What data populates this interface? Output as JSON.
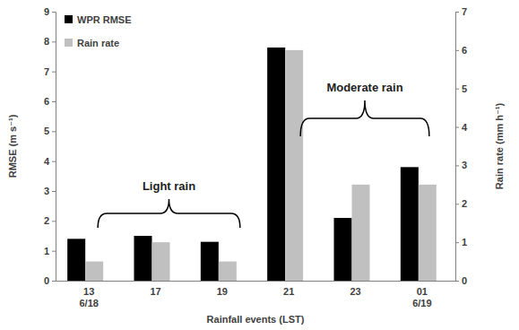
{
  "chart_data": {
    "type": "bar",
    "x_label": "Rainfall events (LST)",
    "y_label": "RMSE (m s⁻¹)",
    "y2_label": "Rain rate (mm h⁻¹)",
    "categories": [
      "13\n6/18",
      "17",
      "19",
      "21",
      "23",
      "01\n6/19"
    ],
    "series": [
      {
        "name": "WPR RMSE",
        "color": "#000000",
        "values": [
          1.4,
          1.5,
          1.3,
          7.8,
          2.1,
          3.8
        ]
      },
      {
        "name": "Rain rate",
        "color": "#c0c0c0",
        "axis": "y2",
        "values": [
          0.5,
          1.0,
          0.5,
          6.0,
          2.5,
          2.5
        ]
      }
    ],
    "ylim": [
      0,
      9
    ],
    "yticks": [
      0,
      1,
      2,
      3,
      4,
      5,
      6,
      7,
      8,
      9
    ],
    "y2lim": [
      0,
      7
    ],
    "y2ticks": [
      0,
      1,
      2,
      3,
      4,
      5,
      6,
      7
    ],
    "legend": "top-left",
    "grid": false,
    "annotations": [
      "Light rain",
      "Moderate rain"
    ]
  }
}
